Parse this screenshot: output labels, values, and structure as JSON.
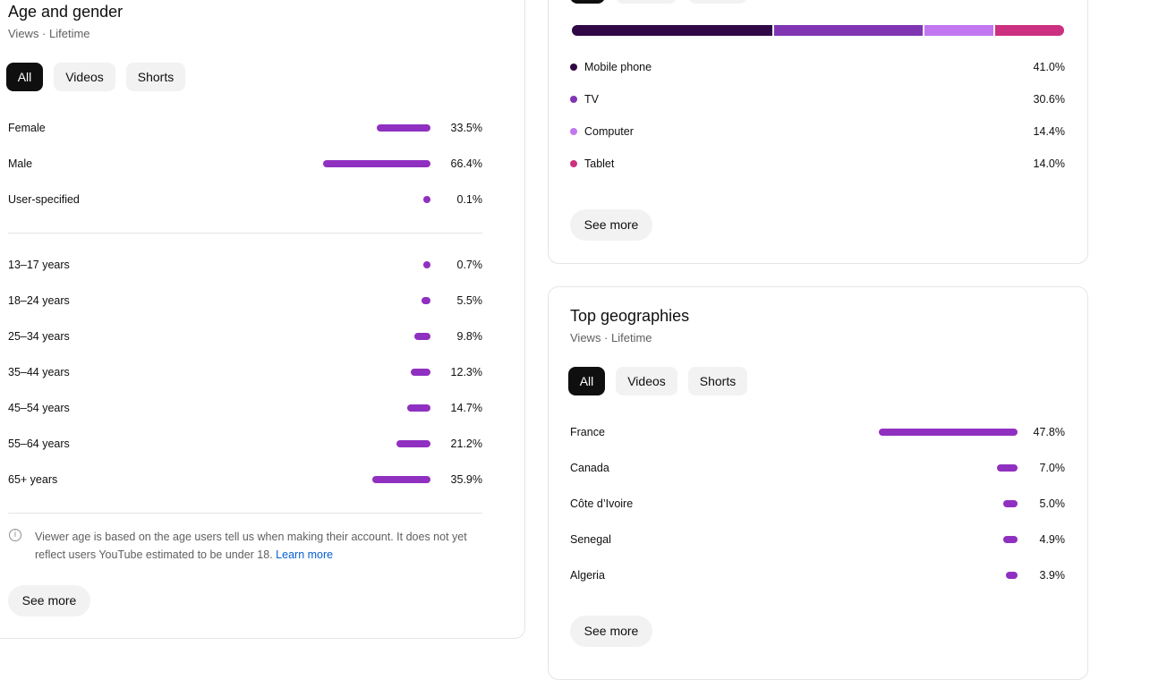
{
  "age_gender": {
    "title": "Age and gender",
    "subtitle": "Views · Lifetime",
    "tabs": [
      "All",
      "Videos",
      "Shorts"
    ],
    "gender": [
      {
        "label": "Female",
        "value": 33.5,
        "pct": "33.5%"
      },
      {
        "label": "Male",
        "value": 66.4,
        "pct": "66.4%"
      },
      {
        "label": "User-specified",
        "value": 0.1,
        "pct": "0.1%"
      }
    ],
    "age": [
      {
        "label": "13–17 years",
        "value": 0.7,
        "pct": "0.7%"
      },
      {
        "label": "18–24 years",
        "value": 5.5,
        "pct": "5.5%"
      },
      {
        "label": "25–34 years",
        "value": 9.8,
        "pct": "9.8%"
      },
      {
        "label": "35–44 years",
        "value": 12.3,
        "pct": "12.3%"
      },
      {
        "label": "45–54 years",
        "value": 14.7,
        "pct": "14.7%"
      },
      {
        "label": "55–64 years",
        "value": 21.2,
        "pct": "21.2%"
      },
      {
        "label": "65+ years",
        "value": 35.9,
        "pct": "35.9%"
      }
    ],
    "note": "Viewer age is based on the age users tell us when making their account. It does not yet reflect users YouTube estimated to be under 18.",
    "learn_more": "Learn more",
    "see_more": "See more"
  },
  "devices": {
    "items": [
      {
        "label": "Mobile phone",
        "value": 41.0,
        "pct": "41.0%",
        "color": "#300845"
      },
      {
        "label": "TV",
        "value": 30.6,
        "pct": "30.6%",
        "color": "#8036b2"
      },
      {
        "label": "Computer",
        "value": 14.4,
        "pct": "14.4%",
        "color": "#c077f0"
      },
      {
        "label": "Tablet",
        "value": 14.0,
        "pct": "14.0%",
        "color": "#cc3080"
      }
    ],
    "see_more": "See more"
  },
  "geographies": {
    "title": "Top geographies",
    "subtitle": "Views · Lifetime",
    "tabs": [
      "All",
      "Videos",
      "Shorts"
    ],
    "items": [
      {
        "label": "France",
        "value": 47.8,
        "pct": "47.8%"
      },
      {
        "label": "Canada",
        "value": 7.0,
        "pct": "7.0%"
      },
      {
        "label": "Côte d’Ivoire",
        "value": 5.0,
        "pct": "5.0%"
      },
      {
        "label": "Senegal",
        "value": 4.9,
        "pct": "4.9%"
      },
      {
        "label": "Algeria",
        "value": 3.9,
        "pct": "3.9%"
      }
    ],
    "see_more": "See more"
  },
  "colors": {
    "bar": "#9030c0",
    "link": "#065fd4"
  }
}
